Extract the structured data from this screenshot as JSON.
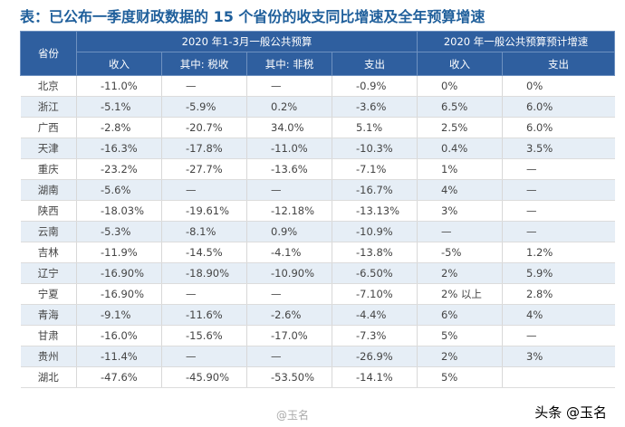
{
  "title": "表：已公布一季度财政数据的 15 个省份的收支同比增速及全年预算增速",
  "header": {
    "province": "省份",
    "group1": "2020 年1-3月一般公共预算",
    "group2": "2020 年一般公共预算预计增速",
    "cols": [
      "收入",
      "其中: 税收",
      "其中: 非税",
      "支出",
      "收入",
      "支出"
    ]
  },
  "rows": [
    {
      "province": "北京",
      "values": [
        "-11.0%",
        "—",
        "—",
        "-0.9%",
        "0%",
        "0%"
      ]
    },
    {
      "province": "浙江",
      "values": [
        "-5.1%",
        "-5.9%",
        "0.2%",
        "-3.6%",
        "6.5%",
        "6.0%"
      ]
    },
    {
      "province": "广西",
      "values": [
        "-2.8%",
        "-20.7%",
        "34.0%",
        "5.1%",
        "2.5%",
        "6.0%"
      ]
    },
    {
      "province": "天津",
      "values": [
        "-16.3%",
        "-17.8%",
        "-11.0%",
        "-10.3%",
        "0.4%",
        "3.5%"
      ]
    },
    {
      "province": "重庆",
      "values": [
        "-23.2%",
        "-27.7%",
        "-13.6%",
        "-7.1%",
        "1%",
        "—"
      ]
    },
    {
      "province": "湖南",
      "values": [
        "-5.6%",
        "—",
        "—",
        "-16.7%",
        "4%",
        "—"
      ]
    },
    {
      "province": "陕西",
      "values": [
        "-18.03%",
        "-19.61%",
        "-12.18%",
        "-13.13%",
        "3%",
        "—"
      ]
    },
    {
      "province": "云南",
      "values": [
        "-5.3%",
        "-8.1%",
        "0.9%",
        "-10.9%",
        "—",
        "—"
      ]
    },
    {
      "province": "吉林",
      "values": [
        "-11.9%",
        "-14.5%",
        "-4.1%",
        "-13.8%",
        "-5%",
        "1.2%"
      ]
    },
    {
      "province": "辽宁",
      "values": [
        "-16.90%",
        "-18.90%",
        "-10.90%",
        "-6.50%",
        "2%",
        "5.9%"
      ]
    },
    {
      "province": "宁夏",
      "values": [
        "-16.90%",
        "—",
        "—",
        "-7.10%",
        "2% 以上",
        "2.8%"
      ]
    },
    {
      "province": "青海",
      "values": [
        "-9.1%",
        "-11.6%",
        "-2.6%",
        "-4.4%",
        "6%",
        "4%"
      ]
    },
    {
      "province": "甘肃",
      "values": [
        "-16.0%",
        "-15.6%",
        "-17.0%",
        "-7.3%",
        "5%",
        "—"
      ]
    },
    {
      "province": "贵州",
      "values": [
        "-11.4%",
        "—",
        "—",
        "-26.9%",
        "2%",
        "3%"
      ]
    },
    {
      "province": "湖北",
      "values": [
        "-47.6%",
        "-45.90%",
        "-53.50%",
        "-14.1%",
        "5%",
        ""
      ]
    }
  ],
  "watermark": "头条 @玉名",
  "watermark_small": "@玉名"
}
